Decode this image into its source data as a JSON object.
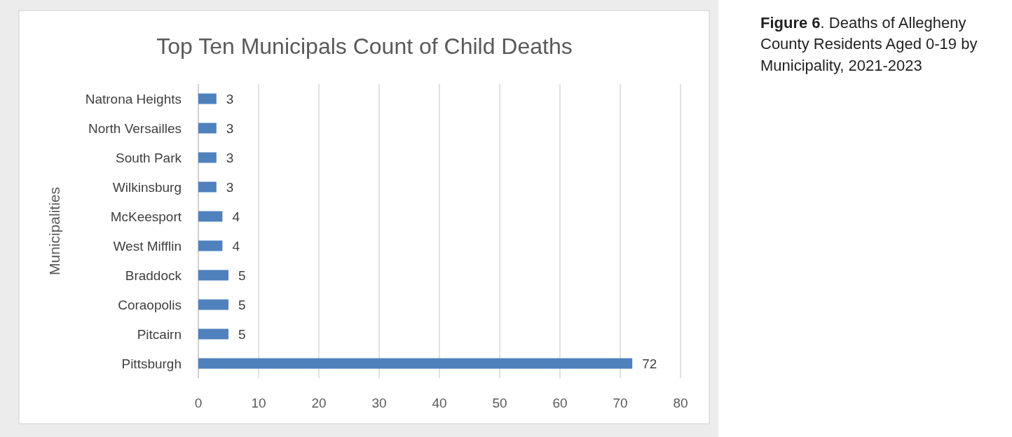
{
  "chart_data": {
    "type": "bar",
    "orientation": "horizontal",
    "title": "Top Ten Municipals Count of Child Deaths",
    "ylabel": "Municipalities",
    "categories": [
      "Natrona Heights",
      "North Versailles",
      "South Park",
      "Wilkinsburg",
      "McKeesport",
      "West Mifflin",
      "Braddock",
      "Coraopolis",
      "Pitcairn",
      "Pittsburgh"
    ],
    "values": [
      3,
      3,
      3,
      3,
      4,
      4,
      5,
      5,
      5,
      72
    ],
    "color": "#4f81bd",
    "xlim": [
      0,
      80
    ],
    "xticks": [
      0,
      10,
      20,
      30,
      40,
      50,
      60,
      70,
      80
    ],
    "grid": "x",
    "data_labels": true,
    "annotations": [
      "Figure 6. Deaths of Allegheny County Residents Aged 0-19 by Municipality, 2021-2023"
    ]
  }
}
